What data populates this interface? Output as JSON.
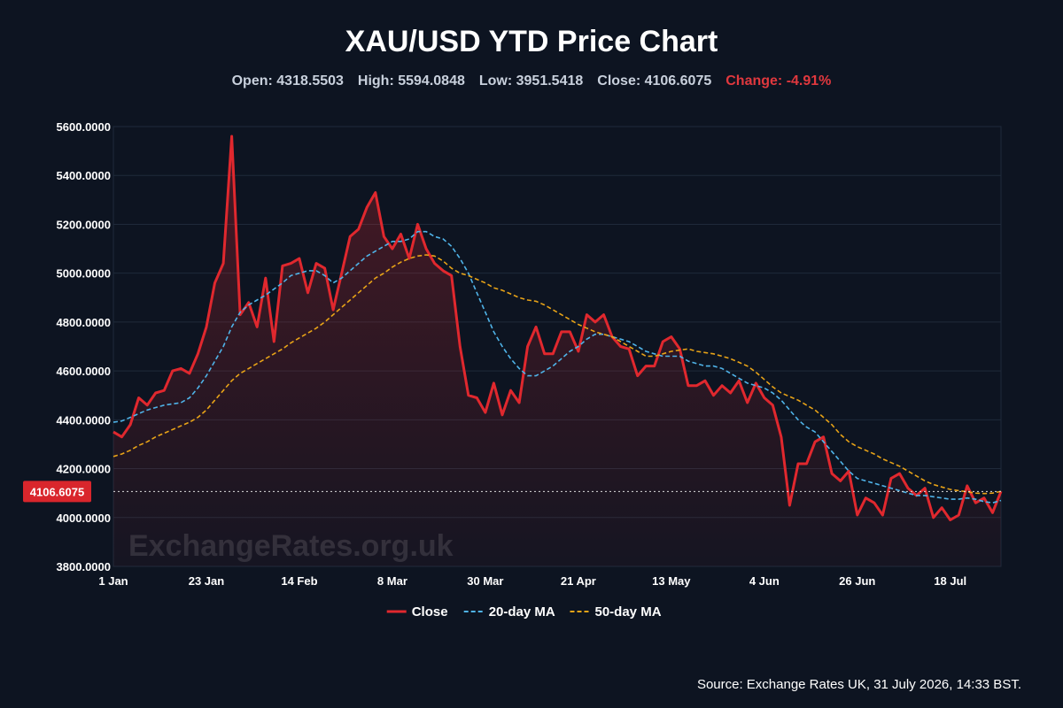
{
  "chart_data": {
    "type": "line",
    "title": "XAU/USD YTD Price Chart",
    "stats": [
      "Open: 4318.5503",
      "High: 5594.0848",
      "Low: 3951.5418",
      "Close: 4106.6075"
    ],
    "change": "Change: -4.91%",
    "change_color": "#e0383e",
    "watermark": "ExchangeRates.org.uk",
    "source": "Source: Exchange Rates UK, 31 July 2026, 14:33 BST.",
    "last_value": 4106.6075,
    "categories": [
      "1 Jan",
      null,
      null,
      null,
      null,
      null,
      null,
      null,
      null,
      null,
      null,
      "23 Jan",
      null,
      null,
      null,
      null,
      null,
      null,
      null,
      null,
      null,
      null,
      "14 Feb",
      null,
      null,
      null,
      null,
      null,
      null,
      null,
      null,
      null,
      null,
      "8 Mar",
      null,
      null,
      null,
      null,
      null,
      null,
      null,
      null,
      null,
      null,
      "30 Mar",
      null,
      null,
      null,
      null,
      null,
      null,
      null,
      null,
      null,
      null,
      "21 Apr",
      null,
      null,
      null,
      null,
      null,
      null,
      null,
      null,
      null,
      null,
      "13 May",
      null,
      null,
      null,
      null,
      null,
      null,
      null,
      null,
      null,
      null,
      "4 Jun",
      null,
      null,
      null,
      null,
      null,
      null,
      null,
      null,
      null,
      null,
      "26 Jun",
      null,
      null,
      null,
      null,
      null,
      null,
      null,
      null,
      null,
      null,
      "18 Jul",
      null,
      null,
      null,
      null,
      null,
      null
    ],
    "series": [
      {
        "name": "Close",
        "color": "#e0282e",
        "dashed": false,
        "area": true,
        "values": [
          4350,
          4330,
          4380,
          4490,
          4460,
          4510,
          4520,
          4600,
          4610,
          4590,
          4670,
          4780,
          4960,
          5040,
          5560,
          4830,
          4880,
          4780,
          4980,
          4720,
          5030,
          5040,
          5060,
          4920,
          5040,
          5020,
          4850,
          5000,
          5150,
          5180,
          5270,
          5330,
          5150,
          5100,
          5160,
          5060,
          5200,
          5100,
          5040,
          5010,
          4990,
          4700,
          4500,
          4490,
          4430,
          4550,
          4420,
          4520,
          4470,
          4700,
          4780,
          4670,
          4670,
          4760,
          4760,
          4680,
          4830,
          4800,
          4830,
          4740,
          4700,
          4690,
          4580,
          4620,
          4620,
          4720,
          4740,
          4690,
          4540,
          4540,
          4560,
          4500,
          4540,
          4510,
          4560,
          4470,
          4550,
          4490,
          4460,
          4330,
          4050,
          4220,
          4220,
          4310,
          4330,
          4180,
          4150,
          4190,
          4010,
          4080,
          4060,
          4010,
          4160,
          4180,
          4120,
          4090,
          4120,
          4000,
          4040,
          3990,
          4010,
          4130,
          4060,
          4080,
          4020,
          4107
        ]
      },
      {
        "name": "20-day MA",
        "color": "#4fb3e8",
        "dashed": true,
        "area": false,
        "values": [
          4390,
          4395,
          4410,
          4425,
          4440,
          4450,
          4460,
          4465,
          4470,
          4490,
          4530,
          4580,
          4640,
          4700,
          4780,
          4840,
          4870,
          4890,
          4910,
          4935,
          4960,
          4990,
          5000,
          5010,
          5010,
          4990,
          4960,
          4980,
          5010,
          5040,
          5070,
          5090,
          5110,
          5130,
          5130,
          5140,
          5170,
          5170,
          5150,
          5140,
          5110,
          5060,
          5000,
          4920,
          4840,
          4760,
          4700,
          4650,
          4610,
          4580,
          4580,
          4600,
          4620,
          4650,
          4680,
          4700,
          4730,
          4750,
          4750,
          4740,
          4730,
          4720,
          4700,
          4680,
          4670,
          4660,
          4660,
          4660,
          4640,
          4630,
          4620,
          4620,
          4610,
          4590,
          4570,
          4550,
          4540,
          4530,
          4510,
          4480,
          4440,
          4400,
          4370,
          4350,
          4310,
          4270,
          4230,
          4190,
          4160,
          4150,
          4140,
          4130,
          4120,
          4110,
          4100,
          4090,
          4090,
          4085,
          4080,
          4075,
          4075,
          4080,
          4075,
          4065,
          4060,
          4070
        ]
      },
      {
        "name": "50-day MA",
        "color": "#e8a317",
        "dashed": true,
        "area": false,
        "values": [
          4250,
          4260,
          4275,
          4295,
          4310,
          4330,
          4345,
          4360,
          4375,
          4390,
          4410,
          4440,
          4480,
          4520,
          4560,
          4590,
          4610,
          4630,
          4650,
          4670,
          4690,
          4715,
          4735,
          4755,
          4775,
          4800,
          4830,
          4860,
          4890,
          4920,
          4950,
          4980,
          5000,
          5025,
          5045,
          5060,
          5070,
          5075,
          5070,
          5050,
          5020,
          5000,
          4990,
          4975,
          4960,
          4940,
          4930,
          4915,
          4900,
          4890,
          4885,
          4870,
          4850,
          4830,
          4810,
          4790,
          4775,
          4760,
          4750,
          4740,
          4720,
          4700,
          4680,
          4660,
          4660,
          4670,
          4680,
          4685,
          4690,
          4680,
          4675,
          4670,
          4660,
          4650,
          4635,
          4620,
          4595,
          4565,
          4535,
          4510,
          4495,
          4480,
          4460,
          4440,
          4410,
          4380,
          4340,
          4310,
          4290,
          4275,
          4260,
          4240,
          4225,
          4210,
          4190,
          4170,
          4150,
          4135,
          4125,
          4115,
          4110,
          4105,
          4100,
          4098,
          4100,
          4107
        ]
      }
    ],
    "ylim": [
      3800,
      5600
    ],
    "yticks": [
      {
        "value": 3800,
        "label": "3800.0000"
      },
      {
        "value": 4000,
        "label": "4000.0000"
      },
      {
        "value": 4200,
        "label": "4200.0000"
      },
      {
        "value": 4400,
        "label": "4400.0000"
      },
      {
        "value": 4600,
        "label": "4600.0000"
      },
      {
        "value": 4800,
        "label": "4800.0000"
      },
      {
        "value": 5000,
        "label": "5000.0000"
      },
      {
        "value": 5200,
        "label": "5200.0000"
      },
      {
        "value": 5400,
        "label": "5400.0000"
      },
      {
        "value": 5600,
        "label": "5600.0000"
      }
    ],
    "grid": true
  }
}
